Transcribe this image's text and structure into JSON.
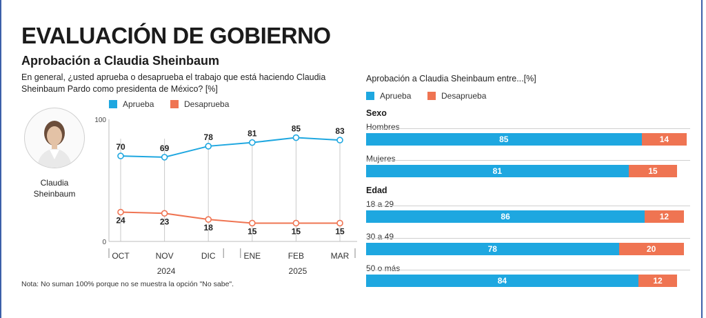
{
  "colors": {
    "approve": "#1ea7e0",
    "disapprove": "#ef7452",
    "frame": "#3b5fa8"
  },
  "header": {
    "title": "EVALUACIÓN DE GOBIERNO",
    "subtitle": "Aprobación a Claudia Sheinbaum",
    "question": "En general, ¿usted aprueba o desaprueba el trabajo que está haciendo Claudia Sheinbaum Pardo como presidenta de México? [%]"
  },
  "person": {
    "name_line1": "Claudia",
    "name_line2": "Sheinbaum",
    "icon": "person-portrait-icon"
  },
  "legend": {
    "approve": "Aprueba",
    "disapprove": "Desaprueba"
  },
  "note": "Nota: No suman 100% porque no se muestra la opción \"No sabe\".",
  "right": {
    "title": "Aprobación a Claudia Sheinbaum entre...[%]"
  },
  "chart_data": [
    {
      "type": "line",
      "title": "Aprobación a Claudia Sheinbaum",
      "categories": [
        "OCT",
        "NOV",
        "DIC",
        "ENE",
        "FEB",
        "MAR"
      ],
      "year_groups": [
        {
          "label": "2024",
          "categories": [
            "OCT",
            "NOV",
            "DIC"
          ]
        },
        {
          "label": "2025",
          "categories": [
            "ENE",
            "FEB",
            "MAR"
          ]
        }
      ],
      "series": [
        {
          "name": "Aprueba",
          "values": [
            70,
            69,
            78,
            81,
            85,
            83
          ]
        },
        {
          "name": "Desaprueba",
          "values": [
            24,
            23,
            18,
            15,
            15,
            15
          ]
        }
      ],
      "ylim": [
        0,
        100
      ],
      "yticks": [
        0,
        100
      ],
      "xlabel": "",
      "ylabel": ""
    },
    {
      "type": "bar",
      "orientation": "horizontal-stacked",
      "title": "Aprobación a Claudia Sheinbaum entre...[%]",
      "groups": [
        {
          "label": "Sexo",
          "rows": [
            {
              "label": "Hombres",
              "approve": 85,
              "disapprove": 14
            },
            {
              "label": "Mujeres",
              "approve": 81,
              "disapprove": 15
            }
          ]
        },
        {
          "label": "Edad",
          "rows": [
            {
              "label": "18 a 29",
              "approve": 86,
              "disapprove": 12
            },
            {
              "label": "30 a 49",
              "approve": 78,
              "disapprove": 20
            },
            {
              "label": "50 o más",
              "approve": 84,
              "disapprove": 12
            }
          ]
        }
      ],
      "xlim": [
        0,
        100
      ]
    }
  ]
}
